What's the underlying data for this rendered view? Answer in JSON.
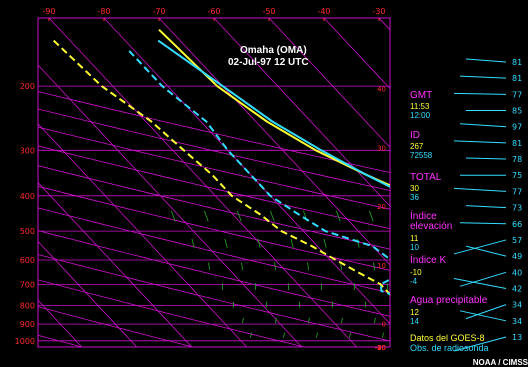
{
  "title": {
    "line1": "Omaha (OMA)",
    "line2": "02-Jul-97 12 UTC"
  },
  "colors": {
    "grid": "#cc11cc",
    "temperature": "#ffff33",
    "dewpoint": "#33ddff",
    "mixing_ratio": "#22aa22",
    "tick_labels": "#ff2a2a",
    "headings": "#ff33ff"
  },
  "sidebar": {
    "gmt": {
      "label": "GMT",
      "goes": "11:53",
      "raob": "12:00"
    },
    "id": {
      "label": "ID",
      "goes": "267",
      "raob": "72558"
    },
    "total": {
      "label": "TOTAL",
      "goes": "30",
      "raob": "36"
    },
    "lifted": {
      "label_line1": "Índice",
      "label_line2": "elevación",
      "goes": "11",
      "raob": "10"
    },
    "k_index": {
      "label": "Índice K",
      "goes": "-10",
      "raob": "-4"
    },
    "precip": {
      "label": "Agua precipitable",
      "goes": "12",
      "raob": "14"
    },
    "legend": {
      "goes": "Datos del GOES-8",
      "raob": "Obs. de radiosonda"
    }
  },
  "credit": "NOAA / CIMSS",
  "chart_data": {
    "type": "line",
    "title": "Omaha (OMA) 02-Jul-97 12 UTC",
    "xlabel": "",
    "ylabel": "",
    "x_axis": {
      "unit": "°C",
      "ticks": [
        -90,
        -80,
        -70,
        -60,
        -50,
        -40,
        -30
      ],
      "range": [
        -92,
        -28
      ]
    },
    "y_axis": {
      "unit": "hPa",
      "scale": "log",
      "ticks": [
        200,
        300,
        400,
        500,
        600,
        700,
        800,
        900,
        1000
      ],
      "range": [
        130,
        1040
      ]
    },
    "skewed_isotherm_labels": [
      -40,
      -30,
      -20,
      -10,
      0,
      10,
      20,
      30,
      40
    ],
    "series": [
      {
        "name": "GOES-8",
        "role": "temperature",
        "line": "solid",
        "points": [
          [
            140,
            -72
          ],
          [
            200,
            -71
          ],
          [
            250,
            -68
          ],
          [
            300,
            -64
          ],
          [
            350,
            -59
          ],
          [
            400,
            -54
          ],
          [
            450,
            -51
          ],
          [
            500,
            -50
          ],
          [
            550,
            -48
          ],
          [
            600,
            -47
          ],
          [
            650,
            -45
          ],
          [
            700,
            -44
          ],
          [
            750,
            -44.5
          ],
          [
            800,
            -45
          ],
          [
            850,
            -46
          ],
          [
            900,
            -48
          ],
          [
            950,
            -49
          ],
          [
            975,
            -49.5
          ]
        ]
      },
      {
        "name": "GOES-8",
        "role": "dewpoint",
        "line": "dashed",
        "points": [
          [
            150,
            -93
          ],
          [
            200,
            -92
          ],
          [
            250,
            -89
          ],
          [
            300,
            -88
          ],
          [
            350,
            -87
          ],
          [
            400,
            -87
          ],
          [
            450,
            -85
          ],
          [
            500,
            -84
          ],
          [
            550,
            -81
          ],
          [
            600,
            -79
          ],
          [
            650,
            -77
          ],
          [
            700,
            -75
          ],
          [
            750,
            -75
          ],
          [
            800,
            -71
          ],
          [
            850,
            -67
          ],
          [
            900,
            -63
          ],
          [
            950,
            -58
          ]
        ]
      },
      {
        "name": "Radiosonda",
        "role": "temperature",
        "line": "solid",
        "points": [
          [
            150,
            -74
          ],
          [
            200,
            -70
          ],
          [
            250,
            -67
          ],
          [
            300,
            -63
          ],
          [
            350,
            -59
          ],
          [
            400,
            -55
          ],
          [
            450,
            -54
          ],
          [
            480,
            -53
          ],
          [
            500,
            -52
          ],
          [
            550,
            -49
          ],
          [
            600,
            -46
          ],
          [
            650,
            -44
          ],
          [
            700,
            -44
          ],
          [
            750,
            -45
          ],
          [
            800,
            -46
          ],
          [
            850,
            -46
          ],
          [
            900,
            -49
          ],
          [
            950,
            -50
          ]
        ]
      },
      {
        "name": "Radiosonda",
        "role": "dewpoint",
        "line": "dashed",
        "points": [
          [
            160,
            -81
          ],
          [
            200,
            -81
          ],
          [
            250,
            -79
          ],
          [
            300,
            -80
          ],
          [
            350,
            -80
          ],
          [
            400,
            -80
          ],
          [
            450,
            -78
          ],
          [
            500,
            -76
          ],
          [
            550,
            -70
          ],
          [
            600,
            -69
          ],
          [
            650,
            -69
          ],
          [
            700,
            -75
          ],
          [
            730,
            -76
          ],
          [
            800,
            -71
          ],
          [
            850,
            -66
          ],
          [
            900,
            -59
          ],
          [
            950,
            -57
          ]
        ]
      }
    ],
    "wind_labels": [
      81,
      81,
      77,
      85,
      97,
      81,
      78,
      75,
      77,
      73,
      66,
      57,
      49,
      40,
      42,
      34,
      34,
      13
    ],
    "grid": true
  }
}
